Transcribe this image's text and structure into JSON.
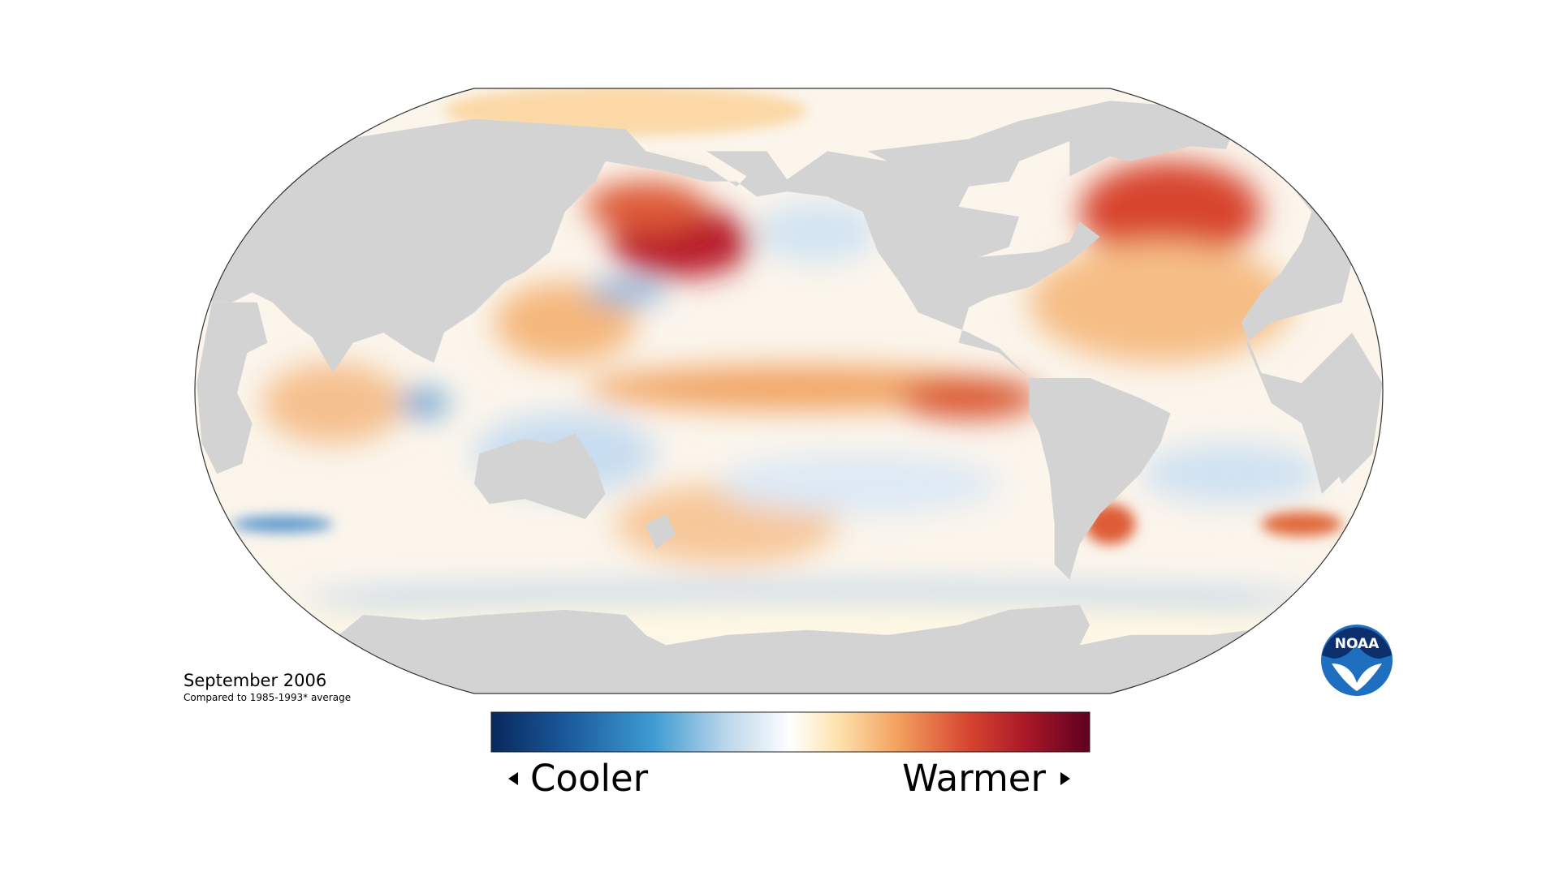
{
  "title": "September 2006",
  "subtitle": "Compared to 1985-1993* average",
  "legend": {
    "low_label": "Cooler",
    "high_label": "Warmer"
  },
  "logo": {
    "text": "NOAA"
  }
}
